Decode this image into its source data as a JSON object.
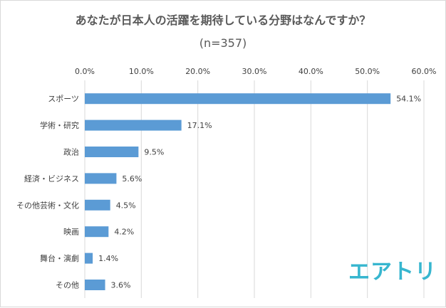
{
  "chart_data": {
    "type": "bar",
    "orientation": "horizontal",
    "title": "あなたが日本人の活躍を期待している分野はなんですか？",
    "subtitle": "(n=357)",
    "categories": [
      "スポーツ",
      "学術・研究",
      "政治",
      "経済・ビジネス",
      "その他芸術・文化",
      "映画",
      "舞台・演劇",
      "その他"
    ],
    "values": [
      54.1,
      17.1,
      9.5,
      5.6,
      4.5,
      4.2,
      1.4,
      3.6
    ],
    "value_labels": [
      "54.1%",
      "17.1%",
      "9.5%",
      "5.6%",
      "4.5%",
      "4.2%",
      "1.4%",
      "3.6%"
    ],
    "xlim": [
      0,
      60
    ],
    "x_ticks": [
      "0.0%",
      "10.0%",
      "20.0%",
      "30.0%",
      "40.0%",
      "50.0%",
      "60.0%"
    ],
    "x_tick_values": [
      0,
      10,
      20,
      30,
      40,
      50,
      60
    ],
    "axis_position": "top",
    "grid": true,
    "bar_color": "#5b9bd5"
  },
  "brand": {
    "logo_text": "エアトリ",
    "color": "#37b6cf"
  }
}
